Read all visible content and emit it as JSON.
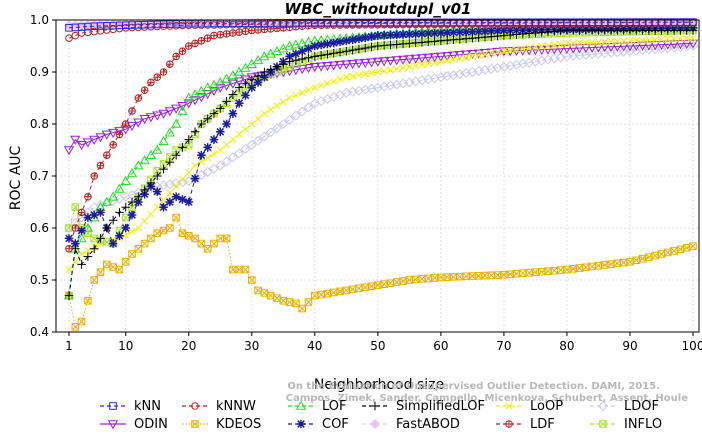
{
  "chart_data": {
    "type": "line",
    "title": "WBC_withoutdupl_v01",
    "xlabel": "Neighborhood size",
    "ylabel": "ROC AUC",
    "xlim": [
      1,
      100
    ],
    "ylim": [
      0.4,
      1.0
    ],
    "xticks": [
      1,
      10,
      20,
      30,
      40,
      50,
      60,
      70,
      80,
      90,
      100
    ],
    "xtick_labels": [
      "1",
      "10",
      "20",
      "30",
      "40",
      "50",
      "60",
      "70",
      "80",
      "90",
      "100"
    ],
    "yticks": [
      0.4,
      0.5,
      0.6,
      0.7,
      0.8,
      0.9,
      1.0
    ],
    "ytick_labels": [
      "0.4",
      "0.5",
      "0.6",
      "0.7",
      "0.8",
      "0.9",
      "1.0"
    ],
    "grid": true,
    "legend_position": "bottom",
    "watermark": {
      "line1": "Campos, Zimek, Sander, Campello, Micenkova, Schubert, Assent, Houle",
      "line2": "On the Evaluation of Unsupervised Outlier Detection. DAMI, 2015."
    },
    "series": [
      {
        "name": "kNN",
        "color": "#2b2bd8",
        "marker": "square",
        "dash": "dashed",
        "keypoints": [
          [
            1,
            0.985
          ],
          [
            5,
            0.988
          ],
          [
            10,
            0.99
          ],
          [
            20,
            0.993
          ],
          [
            40,
            0.995
          ],
          [
            100,
            0.996
          ]
        ]
      },
      {
        "name": "kNNW",
        "color": "#b22222",
        "marker": "circle",
        "dash": "dashed",
        "keypoints": [
          [
            1,
            0.965
          ],
          [
            3,
            0.975
          ],
          [
            10,
            0.985
          ],
          [
            20,
            0.99
          ],
          [
            40,
            0.993
          ],
          [
            100,
            0.995
          ]
        ]
      },
      {
        "name": "LOF",
        "color": "#22dd22",
        "marker": "triangle-up",
        "dash": "dashed",
        "keypoints": [
          [
            1,
            0.47
          ],
          [
            2,
            0.56
          ],
          [
            4,
            0.6
          ],
          [
            6,
            0.64
          ],
          [
            8,
            0.66
          ],
          [
            10,
            0.69
          ],
          [
            12,
            0.72
          ],
          [
            15,
            0.75
          ],
          [
            18,
            0.8
          ],
          [
            20,
            0.85
          ],
          [
            23,
            0.87
          ],
          [
            25,
            0.88
          ],
          [
            28,
            0.9
          ],
          [
            32,
            0.93
          ],
          [
            36,
            0.95
          ],
          [
            40,
            0.96
          ],
          [
            50,
            0.97
          ],
          [
            60,
            0.98
          ],
          [
            70,
            0.985
          ],
          [
            80,
            0.99
          ],
          [
            100,
            0.99
          ]
        ]
      },
      {
        "name": "SimplifiedLOF",
        "color": "#000000",
        "marker": "plus",
        "dash": "dashed",
        "keypoints": [
          [
            1,
            0.47
          ],
          [
            2,
            0.56
          ],
          [
            3,
            0.53
          ],
          [
            5,
            0.56
          ],
          [
            7,
            0.6
          ],
          [
            9,
            0.63
          ],
          [
            12,
            0.66
          ],
          [
            15,
            0.7
          ],
          [
            18,
            0.74
          ],
          [
            20,
            0.77
          ],
          [
            22,
            0.8
          ],
          [
            25,
            0.83
          ],
          [
            28,
            0.87
          ],
          [
            32,
            0.9
          ],
          [
            36,
            0.92
          ],
          [
            40,
            0.93
          ],
          [
            45,
            0.94
          ],
          [
            50,
            0.95
          ],
          [
            55,
            0.955
          ],
          [
            60,
            0.96
          ],
          [
            70,
            0.97
          ],
          [
            80,
            0.98
          ],
          [
            100,
            0.98
          ]
        ]
      },
      {
        "name": "LoOP",
        "color": "#f0f000",
        "marker": "x",
        "dash": "dashed",
        "keypoints": [
          [
            1,
            0.52
          ],
          [
            3,
            0.55
          ],
          [
            6,
            0.57
          ],
          [
            9,
            0.58
          ],
          [
            12,
            0.6
          ],
          [
            15,
            0.64
          ],
          [
            18,
            0.68
          ],
          [
            21,
            0.72
          ],
          [
            25,
            0.75
          ],
          [
            28,
            0.78
          ],
          [
            32,
            0.82
          ],
          [
            36,
            0.85
          ],
          [
            40,
            0.87
          ],
          [
            45,
            0.89
          ],
          [
            50,
            0.9
          ],
          [
            60,
            0.92
          ],
          [
            70,
            0.94
          ],
          [
            80,
            0.955
          ],
          [
            90,
            0.96
          ],
          [
            100,
            0.965
          ]
        ]
      },
      {
        "name": "LDOF",
        "color": "#c8c8ee",
        "marker": "diamond",
        "dash": "dashed",
        "keypoints": [
          [
            1,
            0.6
          ],
          [
            5,
            0.64
          ],
          [
            10,
            0.66
          ],
          [
            15,
            0.68
          ],
          [
            20,
            0.69
          ],
          [
            25,
            0.72
          ],
          [
            30,
            0.76
          ],
          [
            35,
            0.8
          ],
          [
            40,
            0.84
          ],
          [
            45,
            0.86
          ],
          [
            50,
            0.87
          ],
          [
            60,
            0.89
          ],
          [
            70,
            0.91
          ],
          [
            80,
            0.93
          ],
          [
            90,
            0.94
          ],
          [
            100,
            0.95
          ]
        ]
      },
      {
        "name": "ODIN",
        "color": "#9a20d8",
        "marker": "triangle-down",
        "dash": "solid",
        "keypoints": [
          [
            1,
            0.75
          ],
          [
            2,
            0.77
          ],
          [
            3,
            0.76
          ],
          [
            5,
            0.77
          ],
          [
            7,
            0.78
          ],
          [
            10,
            0.79
          ],
          [
            13,
            0.81
          ],
          [
            16,
            0.82
          ],
          [
            20,
            0.84
          ],
          [
            25,
            0.87
          ],
          [
            30,
            0.89
          ],
          [
            35,
            0.9
          ],
          [
            40,
            0.91
          ],
          [
            50,
            0.92
          ],
          [
            60,
            0.93
          ],
          [
            70,
            0.94
          ],
          [
            80,
            0.945
          ],
          [
            90,
            0.95
          ],
          [
            100,
            0.955
          ]
        ]
      },
      {
        "name": "KDEOS",
        "color": "#e8b000",
        "marker": "boxed-x",
        "dash": "dotted",
        "keypoints": [
          [
            1,
            0.47
          ],
          [
            2,
            0.41
          ],
          [
            3,
            0.42
          ],
          [
            5,
            0.5
          ],
          [
            7,
            0.53
          ],
          [
            9,
            0.52
          ],
          [
            11,
            0.55
          ],
          [
            13,
            0.57
          ],
          [
            15,
            0.59
          ],
          [
            17,
            0.6
          ],
          [
            18,
            0.62
          ],
          [
            19,
            0.59
          ],
          [
            21,
            0.58
          ],
          [
            23,
            0.56
          ],
          [
            25,
            0.58
          ],
          [
            26,
            0.58
          ],
          [
            27,
            0.52
          ],
          [
            29,
            0.52
          ],
          [
            31,
            0.48
          ],
          [
            33,
            0.47
          ],
          [
            35,
            0.46
          ],
          [
            37,
            0.455
          ],
          [
            38,
            0.445
          ],
          [
            40,
            0.47
          ],
          [
            45,
            0.48
          ],
          [
            50,
            0.49
          ],
          [
            55,
            0.5
          ],
          [
            60,
            0.505
          ],
          [
            70,
            0.51
          ],
          [
            80,
            0.52
          ],
          [
            90,
            0.535
          ],
          [
            100,
            0.565
          ]
        ]
      },
      {
        "name": "COF",
        "color": "#1a1a9c",
        "marker": "asterisk",
        "dash": "dashed",
        "keypoints": [
          [
            1,
            0.58
          ],
          [
            2,
            0.57
          ],
          [
            4,
            0.62
          ],
          [
            6,
            0.63
          ],
          [
            8,
            0.57
          ],
          [
            10,
            0.6
          ],
          [
            12,
            0.65
          ],
          [
            14,
            0.68
          ],
          [
            15,
            0.67
          ],
          [
            16,
            0.64
          ],
          [
            18,
            0.66
          ],
          [
            20,
            0.65
          ],
          [
            22,
            0.74
          ],
          [
            24,
            0.77
          ],
          [
            26,
            0.8
          ],
          [
            28,
            0.84
          ],
          [
            30,
            0.87
          ],
          [
            33,
            0.9
          ],
          [
            36,
            0.93
          ],
          [
            40,
            0.95
          ],
          [
            45,
            0.96
          ],
          [
            50,
            0.97
          ],
          [
            60,
            0.975
          ],
          [
            70,
            0.98
          ],
          [
            100,
            0.985
          ]
        ]
      },
      {
        "name": "FastABOD",
        "color": "#f2c0f2",
        "marker": "diamond-filled",
        "dash": "dashed",
        "keypoints": [
          [
            1,
            0.99
          ],
          [
            10,
            0.992
          ],
          [
            20,
            0.994
          ],
          [
            40,
            0.995
          ],
          [
            100,
            0.996
          ]
        ]
      },
      {
        "name": "LDF",
        "color": "#b22222",
        "marker": "circle-cross",
        "dash": "dashed",
        "keypoints": [
          [
            1,
            0.56
          ],
          [
            2,
            0.6
          ],
          [
            4,
            0.66
          ],
          [
            5,
            0.7
          ],
          [
            6,
            0.72
          ],
          [
            8,
            0.76
          ],
          [
            10,
            0.8
          ],
          [
            12,
            0.85
          ],
          [
            14,
            0.88
          ],
          [
            16,
            0.9
          ],
          [
            18,
            0.93
          ],
          [
            20,
            0.95
          ],
          [
            24,
            0.97
          ],
          [
            30,
            0.98
          ],
          [
            40,
            0.99
          ],
          [
            100,
            0.995
          ]
        ]
      },
      {
        "name": "INFLO",
        "color": "#a8e030",
        "marker": "square-x",
        "dash": "dashed",
        "keypoints": [
          [
            1,
            0.6
          ],
          [
            2,
            0.64
          ],
          [
            3,
            0.6
          ],
          [
            5,
            0.58
          ],
          [
            8,
            0.57
          ],
          [
            10,
            0.62
          ],
          [
            12,
            0.66
          ],
          [
            15,
            0.71
          ],
          [
            18,
            0.75
          ],
          [
            20,
            0.76
          ],
          [
            22,
            0.8
          ],
          [
            25,
            0.83
          ],
          [
            28,
            0.86
          ],
          [
            32,
            0.89
          ],
          [
            36,
            0.91
          ],
          [
            40,
            0.93
          ],
          [
            45,
            0.94
          ],
          [
            50,
            0.95
          ],
          [
            60,
            0.96
          ],
          [
            70,
            0.97
          ],
          [
            80,
            0.975
          ],
          [
            100,
            0.98
          ]
        ]
      }
    ]
  }
}
